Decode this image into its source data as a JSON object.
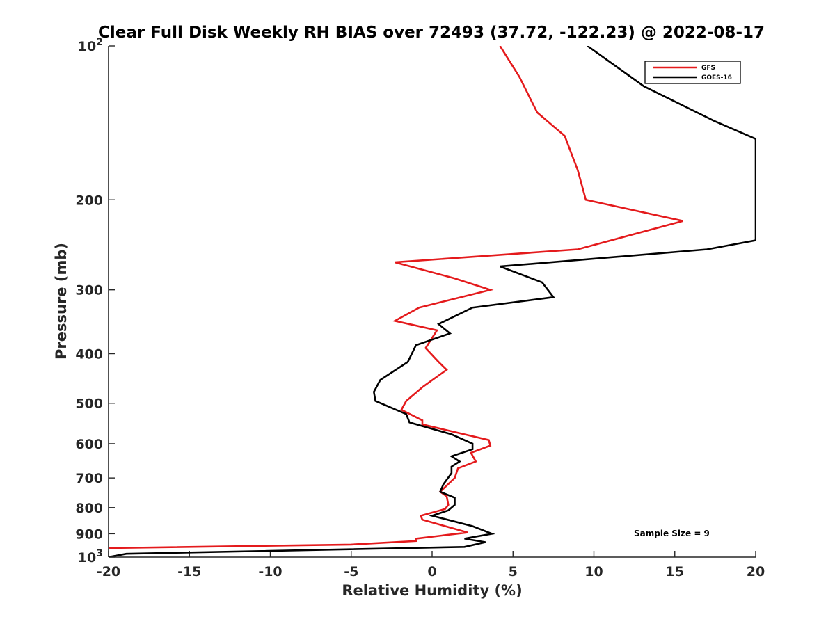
{
  "chart_data": {
    "type": "line",
    "title": "Clear Full Disk Weekly RH BIAS over 72493 (37.72, -122.23) @ 2022-08-17",
    "xlabel": "Relative Humidity (%)",
    "ylabel": "Pressure (mb)",
    "xlim": [
      -20,
      20
    ],
    "ylim": [
      100,
      1000
    ],
    "y_scale": "log",
    "y_reversed": true,
    "grid": false,
    "legend_position": "top-right",
    "x_ticks": [
      -20,
      -15,
      -10,
      -5,
      0,
      5,
      10,
      15,
      20
    ],
    "x_tick_labels": [
      "-20",
      "-15",
      "-10",
      "-5",
      "0",
      "5",
      "10",
      "15",
      "20"
    ],
    "y_ticks": [
      200,
      300,
      400,
      500,
      600,
      700,
      800,
      900
    ],
    "y_tick_labels": [
      "200",
      "300",
      "400",
      "500",
      "600",
      "700",
      "800",
      "900"
    ],
    "y_tick_top": {
      "base": "10",
      "exp": "2"
    },
    "y_tick_bottom": {
      "base": "10",
      "exp": "3"
    },
    "annotation": "Sample Size = 9",
    "series": [
      {
        "name": "GFS",
        "color": "#e41a1c",
        "points": [
          [
            4.2,
            100
          ],
          [
            5.4,
            115
          ],
          [
            6.5,
            135
          ],
          [
            8.2,
            150
          ],
          [
            9.0,
            175
          ],
          [
            9.5,
            200
          ],
          [
            15.5,
            220
          ],
          [
            9.0,
            250
          ],
          [
            -2.3,
            265
          ],
          [
            1.4,
            285
          ],
          [
            3.6,
            300
          ],
          [
            -0.8,
            325
          ],
          [
            -2.3,
            345
          ],
          [
            0.3,
            360
          ],
          [
            -0.4,
            390
          ],
          [
            0.4,
            415
          ],
          [
            0.9,
            430
          ],
          [
            -0.6,
            465
          ],
          [
            -1.6,
            495
          ],
          [
            -1.9,
            515
          ],
          [
            -0.6,
            540
          ],
          [
            -0.6,
            550
          ],
          [
            3.5,
            590
          ],
          [
            3.6,
            605
          ],
          [
            2.4,
            625
          ],
          [
            2.7,
            650
          ],
          [
            1.6,
            670
          ],
          [
            1.4,
            700
          ],
          [
            0.5,
            745
          ],
          [
            0.9,
            760
          ],
          [
            1.0,
            790
          ],
          [
            0.8,
            805
          ],
          [
            -0.7,
            830
          ],
          [
            -0.6,
            845
          ],
          [
            2.2,
            895
          ],
          [
            -1.0,
            920
          ],
          [
            -1.0,
            930
          ],
          [
            -5.0,
            945
          ],
          [
            -20.0,
            960
          ]
        ]
      },
      {
        "name": "GOES-16",
        "color": "#000000",
        "points": [
          [
            9.6,
            100
          ],
          [
            13.1,
            120
          ],
          [
            17.4,
            140
          ],
          [
            20.0,
            152
          ],
          [
            20.0,
            240
          ],
          [
            17.0,
            250
          ],
          [
            4.2,
            270
          ],
          [
            6.8,
            290
          ],
          [
            7.5,
            310
          ],
          [
            2.5,
            325
          ],
          [
            0.4,
            350
          ],
          [
            1.1,
            365
          ],
          [
            -1.0,
            385
          ],
          [
            -1.5,
            415
          ],
          [
            -3.2,
            450
          ],
          [
            -3.6,
            475
          ],
          [
            -3.5,
            495
          ],
          [
            -1.6,
            525
          ],
          [
            -1.4,
            545
          ],
          [
            1.2,
            575
          ],
          [
            2.5,
            600
          ],
          [
            2.5,
            615
          ],
          [
            1.2,
            635
          ],
          [
            1.7,
            650
          ],
          [
            1.2,
            665
          ],
          [
            1.2,
            685
          ],
          [
            0.7,
            720
          ],
          [
            0.5,
            745
          ],
          [
            1.4,
            765
          ],
          [
            1.4,
            790
          ],
          [
            1.0,
            810
          ],
          [
            0.0,
            830
          ],
          [
            2.5,
            870
          ],
          [
            3.7,
            900
          ],
          [
            2.0,
            920
          ],
          [
            3.3,
            935
          ],
          [
            2.0,
            955
          ],
          [
            -18.9,
            985
          ],
          [
            -20.0,
            1000
          ]
        ]
      }
    ]
  }
}
